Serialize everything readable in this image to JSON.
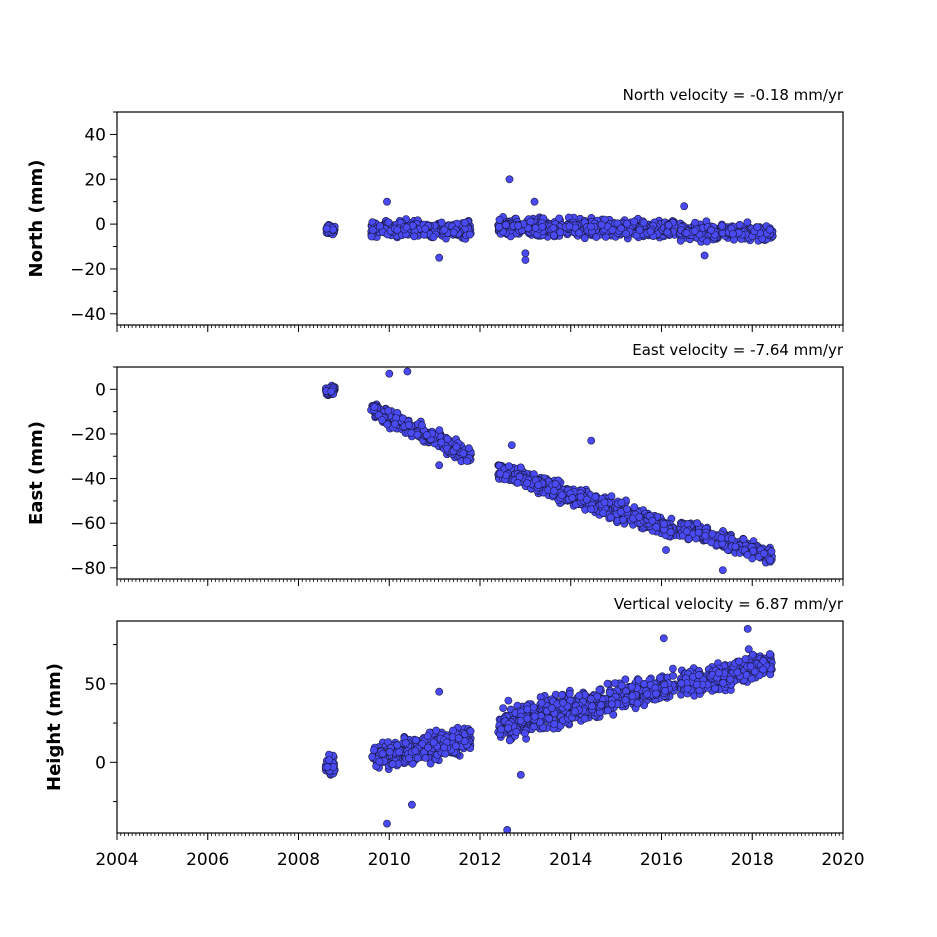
{
  "chart_data": [
    {
      "type": "scatter",
      "title": "North velocity = -0.18 mm/yr",
      "ylabel": "North (mm)",
      "xlim": [
        2004,
        2020
      ],
      "ylim": [
        -45,
        50
      ],
      "yticks": [
        -40,
        -20,
        0,
        20,
        40
      ],
      "marker_color": "#4a4af5",
      "segments": [
        {
          "start": 2008.6,
          "end": 2008.8,
          "y0": -2.5,
          "slope": 0,
          "noise": 1.6
        },
        {
          "start": 2009.6,
          "end": 2011.8,
          "y0": -2.0,
          "slope": -0.18,
          "noise": 2.8
        },
        {
          "start": 2012.4,
          "end": 2016.3,
          "y0": -1.5,
          "slope": -0.18,
          "noise": 3.2
        },
        {
          "start": 2016.4,
          "end": 2018.45,
          "y0": -3.5,
          "slope": -0.18,
          "noise": 2.8
        }
      ],
      "outliers": [
        {
          "x": 2012.65,
          "y": 20
        },
        {
          "x": 2009.95,
          "y": 10
        },
        {
          "x": 2013.2,
          "y": 10
        },
        {
          "x": 2013.0,
          "y": -16
        },
        {
          "x": 2011.1,
          "y": -15
        },
        {
          "x": 2016.95,
          "y": -14
        },
        {
          "x": 2013.0,
          "y": -13
        },
        {
          "x": 2016.5,
          "y": 8
        }
      ]
    },
    {
      "type": "scatter",
      "title": "East velocity = -7.64 mm/yr",
      "ylabel": "East (mm)",
      "xlim": [
        2004,
        2020
      ],
      "ylim": [
        -85,
        10
      ],
      "yticks": [
        -80,
        -60,
        -40,
        -20,
        0
      ],
      "marker_color": "#4a4af5",
      "segments": [
        {
          "start": 2008.6,
          "end": 2008.8,
          "y0": -0.5,
          "slope": 0,
          "noise": 1.5
        },
        {
          "start": 2009.6,
          "end": 2011.8,
          "y0": -9.0,
          "slope": -9.5,
          "noise": 3.0
        },
        {
          "start": 2012.4,
          "end": 2016.3,
          "y0": -36.0,
          "slope": -7.0,
          "noise": 3.5
        },
        {
          "start": 2016.4,
          "end": 2018.45,
          "y0": -62.0,
          "slope": -6.2,
          "noise": 3.0
        }
      ],
      "outliers": [
        {
          "x": 2010.4,
          "y": 8
        },
        {
          "x": 2010.0,
          "y": 7
        },
        {
          "x": 2014.45,
          "y": -23
        },
        {
          "x": 2012.7,
          "y": -25
        },
        {
          "x": 2017.35,
          "y": -81
        },
        {
          "x": 2011.1,
          "y": -34
        },
        {
          "x": 2016.1,
          "y": -72
        }
      ]
    },
    {
      "type": "scatter",
      "title": "Vertical velocity = 6.87 mm/yr",
      "ylabel": "Height (mm)",
      "xlim": [
        2004,
        2020
      ],
      "ylim": [
        -45,
        90
      ],
      "yticks": [
        0,
        50
      ],
      "xlabel": "",
      "xticks": [
        2004,
        2006,
        2008,
        2010,
        2012,
        2014,
        2016,
        2018,
        2020
      ],
      "marker_color": "#4a4af5",
      "segments": [
        {
          "start": 2008.6,
          "end": 2008.8,
          "y0": -3.0,
          "slope": 0,
          "noise": 4.5
        },
        {
          "start": 2009.6,
          "end": 2011.8,
          "y0": 3.0,
          "slope": 5.5,
          "noise": 7.0
        },
        {
          "start": 2012.4,
          "end": 2016.3,
          "y0": 24.0,
          "slope": 6.5,
          "noise": 8.0
        },
        {
          "start": 2016.4,
          "end": 2018.45,
          "y0": 48.0,
          "slope": 7.5,
          "noise": 7.0
        }
      ],
      "outliers": [
        {
          "x": 2012.6,
          "y": -43
        },
        {
          "x": 2009.95,
          "y": -39
        },
        {
          "x": 2017.9,
          "y": 85
        },
        {
          "x": 2016.05,
          "y": 79
        },
        {
          "x": 2011.1,
          "y": 45
        },
        {
          "x": 2012.9,
          "y": -8
        },
        {
          "x": 2010.5,
          "y": -27
        }
      ]
    }
  ]
}
